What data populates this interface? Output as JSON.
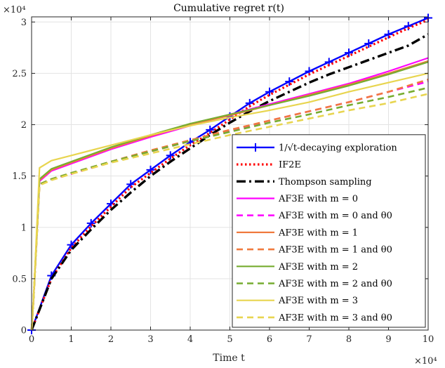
{
  "chart_data": {
    "type": "line",
    "title": "Cumulative regret r(t)",
    "xlabel": "Time t",
    "ylabel": "",
    "x_exponent_label": "×10⁴",
    "y_exponent_label": "×10⁴",
    "xlim": [
      0,
      10
    ],
    "ylim": [
      0,
      3.05
    ],
    "x_ticks": [
      0,
      1,
      2,
      3,
      4,
      5,
      6,
      7,
      8,
      9,
      10
    ],
    "y_ticks": [
      0,
      0.5,
      1,
      1.5,
      2,
      2.5,
      3
    ],
    "grid": true,
    "legend_position": "bottom-right",
    "series": [
      {
        "name": "1/√t-decaying exploration",
        "color": "#0000ff",
        "style": "solid-plus",
        "x": [
          0,
          0.5,
          1,
          1.5,
          2,
          2.5,
          3,
          3.5,
          4,
          4.5,
          5,
          5.5,
          6,
          6.5,
          7,
          7.5,
          8,
          8.5,
          9,
          9.5,
          10
        ],
        "values": [
          0,
          0.53,
          0.83,
          1.04,
          1.23,
          1.42,
          1.56,
          1.7,
          1.83,
          1.95,
          2.08,
          2.21,
          2.32,
          2.42,
          2.52,
          2.61,
          2.7,
          2.79,
          2.88,
          2.96,
          3.04
        ]
      },
      {
        "name": "IF2E",
        "color": "#ff0000",
        "style": "dotted",
        "x": [
          0,
          0.5,
          1,
          1.5,
          2,
          2.5,
          3,
          3.5,
          4,
          4.5,
          5,
          5.5,
          6,
          6.5,
          7,
          7.5,
          8,
          8.5,
          9,
          9.5,
          10
        ],
        "values": [
          0,
          0.5,
          0.8,
          1.01,
          1.2,
          1.39,
          1.53,
          1.67,
          1.8,
          1.92,
          2.05,
          2.18,
          2.29,
          2.39,
          2.49,
          2.58,
          2.67,
          2.76,
          2.85,
          2.94,
          3.02
        ]
      },
      {
        "name": "Thompson sampling",
        "color": "#000000",
        "style": "dashdot",
        "x": [
          0,
          0.5,
          1,
          1.5,
          2,
          2.5,
          3,
          3.5,
          4,
          4.5,
          5,
          5.5,
          6,
          6.5,
          7,
          7.5,
          8,
          8.5,
          9,
          9.5,
          10
        ],
        "values": [
          0,
          0.5,
          0.78,
          0.98,
          1.17,
          1.34,
          1.5,
          1.64,
          1.77,
          1.9,
          2.02,
          2.13,
          2.23,
          2.32,
          2.41,
          2.49,
          2.56,
          2.63,
          2.7,
          2.77,
          2.88
        ]
      },
      {
        "name": "AF3E with m = 0",
        "color": "#ff00ff",
        "style": "solid",
        "x": [
          0,
          0.05,
          0.2,
          0.5,
          1,
          2,
          3,
          4,
          5,
          6,
          7,
          8,
          9,
          10
        ],
        "values": [
          0,
          0.3,
          1.45,
          1.55,
          1.62,
          1.76,
          1.88,
          1.99,
          2.1,
          2.2,
          2.3,
          2.4,
          2.52,
          2.65
        ]
      },
      {
        "name": "AF3E with m = 0 and θ0",
        "color": "#ff00ff",
        "style": "dashed",
        "x": [
          0,
          0.05,
          0.2,
          0.5,
          1,
          2,
          3,
          4,
          5,
          6,
          7,
          8,
          9,
          10
        ],
        "values": [
          0,
          0.3,
          1.42,
          1.47,
          1.52,
          1.64,
          1.74,
          1.84,
          1.94,
          2.04,
          2.13,
          2.22,
          2.32,
          2.42
        ]
      },
      {
        "name": "AF3E with m = 1",
        "color": "#f07a3e",
        "style": "solid",
        "x": [
          0,
          0.05,
          0.2,
          0.5,
          1,
          2,
          3,
          4,
          5,
          6,
          7,
          8,
          9,
          10
        ],
        "values": [
          0,
          0.3,
          1.46,
          1.56,
          1.63,
          1.77,
          1.89,
          2.0,
          2.09,
          2.19,
          2.29,
          2.39,
          2.5,
          2.62
        ]
      },
      {
        "name": "AF3E with m = 1 and θ0",
        "color": "#f07a3e",
        "style": "dashed",
        "x": [
          0,
          0.05,
          0.2,
          0.5,
          1,
          2,
          3,
          4,
          5,
          6,
          7,
          8,
          9,
          10
        ],
        "values": [
          0,
          0.3,
          1.42,
          1.47,
          1.53,
          1.64,
          1.75,
          1.85,
          1.95,
          2.04,
          2.13,
          2.22,
          2.32,
          2.44
        ]
      },
      {
        "name": "AF3E with m = 2",
        "color": "#77ac30",
        "style": "solid",
        "x": [
          0,
          0.05,
          0.2,
          0.5,
          1,
          2,
          3,
          4,
          5,
          6,
          7,
          8,
          9,
          10
        ],
        "values": [
          0,
          0.3,
          1.47,
          1.57,
          1.64,
          1.78,
          1.9,
          2.01,
          2.1,
          2.19,
          2.28,
          2.38,
          2.49,
          2.61
        ]
      },
      {
        "name": "AF3E with m = 2 and θ0",
        "color": "#77ac30",
        "style": "dashed",
        "x": [
          0,
          0.05,
          0.2,
          0.5,
          1,
          2,
          3,
          4,
          5,
          6,
          7,
          8,
          9,
          10
        ],
        "values": [
          0,
          0.3,
          1.42,
          1.47,
          1.53,
          1.64,
          1.74,
          1.84,
          1.93,
          2.02,
          2.1,
          2.19,
          2.27,
          2.36
        ]
      },
      {
        "name": "AF3E with m = 3",
        "color": "#e8d550",
        "style": "solid",
        "x": [
          0,
          0.05,
          0.2,
          0.5,
          1,
          2,
          3,
          4,
          5,
          6,
          7,
          8,
          9,
          10
        ],
        "values": [
          0,
          0.3,
          1.58,
          1.65,
          1.7,
          1.8,
          1.9,
          1.99,
          2.07,
          2.14,
          2.22,
          2.32,
          2.41,
          2.5
        ]
      },
      {
        "name": "AF3E with m = 3 and θ0",
        "color": "#e8d550",
        "style": "dashed",
        "x": [
          0,
          0.05,
          0.2,
          0.5,
          1,
          2,
          3,
          4,
          5,
          6,
          7,
          8,
          9,
          10
        ],
        "values": [
          0,
          0.3,
          1.41,
          1.46,
          1.52,
          1.63,
          1.72,
          1.81,
          1.9,
          1.98,
          2.06,
          2.14,
          2.21,
          2.3
        ]
      }
    ]
  }
}
